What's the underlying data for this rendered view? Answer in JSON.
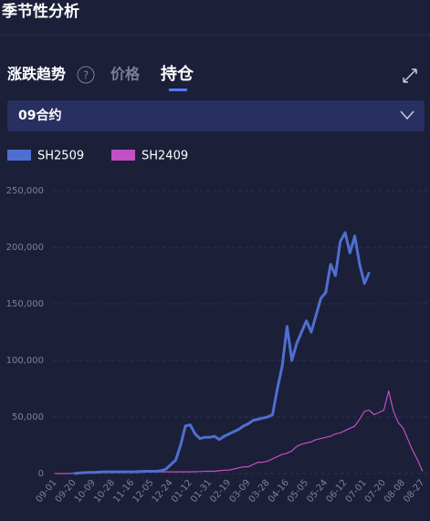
{
  "header": {
    "title": "季节性分析"
  },
  "tabs": [
    "涨跌趋势",
    "价格",
    "持仓"
  ],
  "dropdown": {
    "label": "09合约"
  },
  "chart_data": {
    "type": "line",
    "categories": [
      "09-01",
      null,
      null,
      null,
      "09-20",
      null,
      null,
      null,
      "10-09",
      null,
      null,
      null,
      "10-28",
      null,
      null,
      null,
      "11-16",
      null,
      null,
      null,
      "12-05",
      null,
      null,
      null,
      "12-24",
      null,
      null,
      null,
      "01-12",
      null,
      null,
      null,
      "01-31",
      null,
      null,
      null,
      "02-19",
      null,
      null,
      null,
      "03-09",
      null,
      null,
      null,
      "03-28",
      null,
      null,
      null,
      "04-16",
      null,
      null,
      null,
      "05-05",
      null,
      null,
      null,
      "05-24",
      null,
      null,
      null,
      "06-12",
      null,
      null,
      null,
      "07-01",
      null,
      null,
      null,
      "07-20",
      null,
      null,
      null,
      "08-08",
      null,
      null,
      null,
      "08-27"
    ],
    "series": [
      {
        "name": "SH2509",
        "color": "#4f6fd0",
        "values": [
          null,
          null,
          null,
          null,
          0,
          500,
          800,
          1000,
          1000,
          1200,
          1500,
          1500,
          1500,
          1500,
          1500,
          1500,
          1500,
          1600,
          1800,
          2000,
          2000,
          2000,
          2500,
          4000,
          8000,
          12000,
          25000,
          42000,
          43000,
          35000,
          31000,
          32000,
          32000,
          33000,
          30000,
          33000,
          35000,
          37000,
          39000,
          42000,
          44000,
          47000,
          48000,
          49000,
          50000,
          52000,
          75000,
          95000,
          130000,
          100000,
          115000,
          125000,
          135000,
          125000,
          140000,
          155000,
          160000,
          185000,
          175000,
          205000,
          213000,
          195000,
          210000,
          185000,
          168000,
          178000,
          null,
          null,
          null,
          null,
          null,
          null,
          null,
          null,
          null,
          null,
          null
        ]
      },
      {
        "name": "SH2409",
        "color": "#c24fc4",
        "values": [
          0,
          0,
          0,
          0,
          300,
          500,
          800,
          1000,
          1000,
          1000,
          1200,
          1200,
          1200,
          1200,
          1300,
          1300,
          1300,
          1400,
          1400,
          1500,
          1500,
          1500,
          1500,
          1500,
          1500,
          1500,
          1500,
          1500,
          1500,
          1600,
          1800,
          2000,
          2000,
          2000,
          2500,
          3000,
          3000,
          4000,
          5000,
          6000,
          6000,
          8000,
          10000,
          10000,
          11000,
          13000,
          15000,
          17000,
          18000,
          20000,
          24000,
          26000,
          27000,
          28000,
          30000,
          31000,
          32000,
          33000,
          35000,
          36000,
          38000,
          40000,
          42000,
          48000,
          55000,
          56000,
          52000,
          54000,
          56000,
          73000,
          55000,
          45000,
          40000,
          30000,
          20000,
          12000,
          2000
        ]
      }
    ],
    "ylim": [
      0,
      250000
    ],
    "yticks": [
      0,
      {
        "value": 50000,
        "label": "50,000"
      },
      {
        "value": 100000,
        "label": "100,000"
      },
      {
        "value": 150000,
        "label": "150,000"
      },
      {
        "value": 200000,
        "label": "200,000"
      },
      {
        "value": 250000,
        "label": "250,000"
      }
    ],
    "grid": true
  }
}
